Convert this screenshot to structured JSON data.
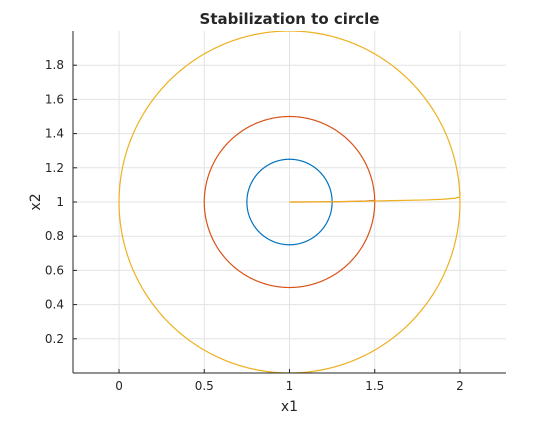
{
  "chart_data": {
    "type": "line",
    "title": "Stabilization to circle",
    "xlabel": "x1",
    "ylabel": "x2",
    "xlim": [
      -0.27,
      2.27
    ],
    "ylim": [
      0,
      2
    ],
    "xticks": [
      0,
      0.5,
      1,
      1.5,
      2
    ],
    "yticks": [
      0.2,
      0.4,
      0.6,
      0.8,
      1,
      1.2,
      1.4,
      1.6,
      1.8
    ],
    "xtick_labels": [
      "0",
      "0.5",
      "1",
      "1.5",
      "2"
    ],
    "ytick_labels": [
      "0.2",
      "0.4",
      "0.6",
      "0.8",
      "1",
      "1.2",
      "1.4",
      "1.6",
      "1.8"
    ],
    "grid": true,
    "series": [
      {
        "color": "#0072BD",
        "center": [
          1,
          1
        ],
        "radius": 0.25
      },
      {
        "color": "#D95319",
        "center": [
          1,
          1
        ],
        "radius": 0.5,
        "approach": {
          "x": [
            1.0,
            1.1,
            1.2,
            1.3,
            1.4,
            1.45,
            1.48,
            1.5
          ],
          "y": [
            1.0,
            1.0,
            1.001,
            1.002,
            1.004,
            1.006,
            1.008,
            1.01
          ]
        }
      },
      {
        "color": "#EDB120",
        "center": [
          1,
          1
        ],
        "radius": 1.0,
        "approach": {
          "x": [
            1.0,
            1.2,
            1.4,
            1.6,
            1.8,
            1.9,
            1.97,
            2.0,
            2.0
          ],
          "y": [
            1.0,
            1.001,
            1.004,
            1.008,
            1.012,
            1.016,
            1.022,
            1.03,
            1.06
          ]
        }
      }
    ]
  }
}
